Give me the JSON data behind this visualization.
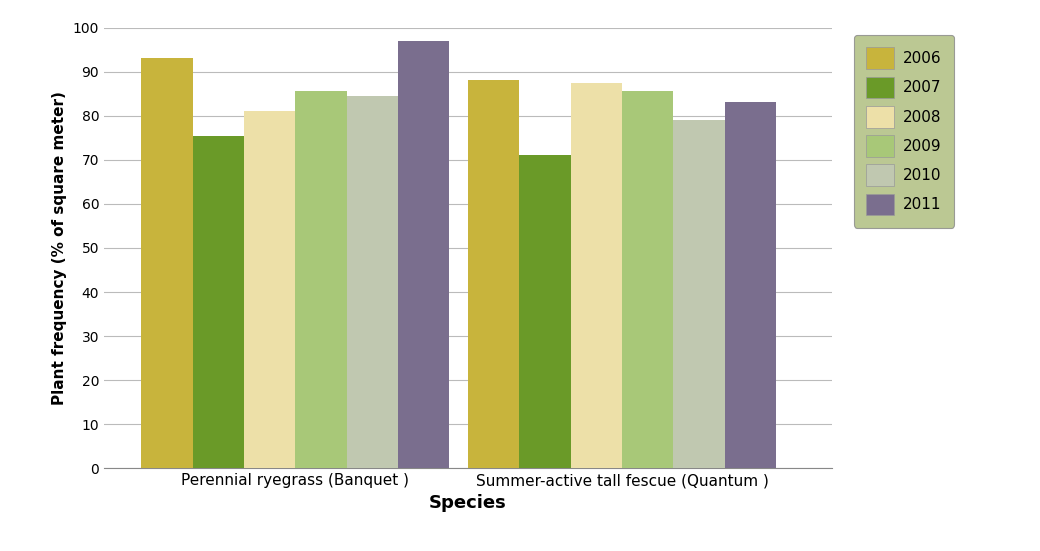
{
  "categories": [
    "Perennial ryegrass (Banquet )",
    "Summer-active tall fescue (Quantum )"
  ],
  "years": [
    "2006",
    "2007",
    "2008",
    "2009",
    "2010",
    "2011"
  ],
  "values": {
    "Perennial ryegrass (Banquet )": [
      93,
      75.5,
      81,
      85.5,
      84.5,
      97
    ],
    "Summer-active tall fescue (Quantum )": [
      88,
      71,
      87.5,
      85.5,
      79,
      83
    ]
  },
  "colors": [
    "#C8B43C",
    "#6A9A28",
    "#EDE0A8",
    "#A8C878",
    "#C0C8B0",
    "#7A6E8E"
  ],
  "ylabel": "Plant frequency (% of square meter)",
  "xlabel": "Species",
  "ylim": [
    0,
    100
  ],
  "yticks": [
    0,
    10,
    20,
    30,
    40,
    50,
    60,
    70,
    80,
    90,
    100
  ],
  "legend_bg": "#AABB78",
  "bar_width": 0.11,
  "group_centers": [
    0.32,
    1.02
  ]
}
